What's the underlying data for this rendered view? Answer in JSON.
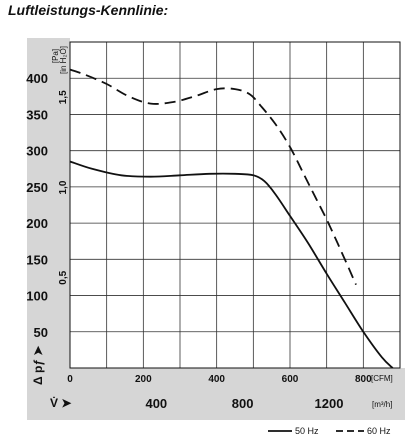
{
  "title": "Luftleistungs-Kennlinie:",
  "chart_data": {
    "type": "line",
    "x_primary": {
      "unit": "[CFM]",
      "ticks": [
        0,
        200,
        400,
        600,
        800
      ],
      "range": [
        0,
        900
      ]
    },
    "x_secondary": {
      "unit": "[m³/h]",
      "ticks": [
        400,
        800,
        1200
      ],
      "symbol": "V̇ ➤"
    },
    "y_primary": {
      "unit": "[Pa]",
      "ticks": [
        50,
        100,
        150,
        200,
        250,
        300,
        350,
        400
      ],
      "range": [
        0,
        450
      ],
      "symbol": "Δ pƒ ➤"
    },
    "y_secondary": {
      "unit": "[in H₂O]",
      "ticks": [
        0.5,
        1.0,
        1.5
      ],
      "labels": [
        "0,5",
        "1,0",
        "1,5"
      ]
    },
    "grid": true,
    "series": [
      {
        "name": "50 Hz",
        "style": "solid",
        "x": [
          0,
          60,
          140,
          220,
          300,
          380,
          450,
          500,
          530,
          560,
          600,
          650,
          700,
          750,
          800,
          850,
          880
        ],
        "y": [
          285,
          275,
          266,
          264,
          266,
          268,
          268,
          266,
          258,
          240,
          210,
          172,
          130,
          90,
          50,
          15,
          0
        ]
      },
      {
        "name": "60 Hz",
        "style": "dashed",
        "x": [
          0,
          40,
          100,
          160,
          220,
          280,
          340,
          400,
          450,
          490,
          520,
          560,
          600,
          640,
          670,
          700,
          730,
          760,
          780
        ],
        "y": [
          412,
          405,
          392,
          375,
          365,
          367,
          375,
          385,
          385,
          378,
          362,
          337,
          305,
          265,
          235,
          205,
          172,
          138,
          115
        ]
      }
    ],
    "legend": {
      "placement": "bottom-right",
      "entries": [
        "50 Hz",
        "60 Hz"
      ]
    }
  }
}
